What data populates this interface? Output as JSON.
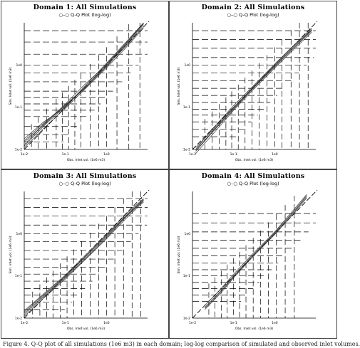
{
  "chart_data": [
    {
      "type": "line",
      "title": "Domain 1:  All Simulations",
      "legend": "Q-Q Plot (log-log)",
      "ylabel": "Sim. Inlet vol. (1e6 m3)",
      "xlabel": "Obs. Inlet vol. (1e6 m3)",
      "scale": "log-log",
      "xlim": [
        0.01,
        10
      ],
      "ylim": [
        0.01,
        10
      ],
      "x_ticks": [
        "1e-2",
        "1e-1",
        "1e0"
      ],
      "y_ticks": [
        "1e-2",
        "1e-1",
        "1e0"
      ],
      "quantile_levels": [
        0.015,
        0.022,
        0.035,
        0.06,
        0.085,
        0.12,
        0.17,
        0.24,
        0.4,
        0.65,
        1.0,
        1.8,
        3.5,
        6.5
      ],
      "series": [
        {
          "x": [
            0.01,
            0.03,
            0.1,
            0.3,
            1,
            3,
            8
          ],
          "y": [
            0.013,
            0.04,
            0.11,
            0.28,
            0.9,
            3.0,
            9.0
          ]
        },
        {
          "x": [
            0.01,
            0.03,
            0.1,
            0.3,
            1,
            3,
            8
          ],
          "y": [
            0.018,
            0.045,
            0.1,
            0.32,
            1.1,
            3.5,
            10.0
          ]
        },
        {
          "x": [
            0.01,
            0.03,
            0.1,
            0.3,
            1,
            3,
            8
          ],
          "y": [
            0.011,
            0.032,
            0.095,
            0.27,
            0.85,
            2.6,
            7.5
          ]
        },
        {
          "x": [
            0.01,
            0.03,
            0.1,
            0.3,
            1,
            3,
            8
          ],
          "y": [
            0.015,
            0.038,
            0.12,
            0.35,
            1.0,
            3.2,
            9.5
          ]
        },
        {
          "x": [
            0.01,
            0.03,
            0.1,
            0.3,
            1,
            3,
            8
          ],
          "y": [
            0.012,
            0.036,
            0.105,
            0.3,
            0.95,
            2.8,
            8.0
          ]
        },
        {
          "x": [
            0.01,
            0.03,
            0.1,
            0.3,
            1,
            3,
            8
          ],
          "y": [
            0.016,
            0.042,
            0.115,
            0.29,
            1.05,
            3.3,
            9.8
          ]
        }
      ]
    },
    {
      "type": "line",
      "title": "Domain 2:  All Simulations",
      "legend": "Q-Q Plot (log-log)",
      "ylabel": "Sim. Inlet vol. (1e6 m3)",
      "xlabel": "Obs. Inlet vol. (1e6 m3)",
      "scale": "log-log",
      "xlim": [
        0.01,
        10
      ],
      "ylim": [
        0.01,
        10
      ],
      "x_ticks": [
        "1e-2",
        "1e-1",
        "1e0"
      ],
      "y_ticks": [
        "1e-2",
        "1e-1",
        "1e0"
      ],
      "quantile_levels": [
        0.02,
        0.03,
        0.045,
        0.065,
        0.09,
        0.13,
        0.19,
        0.28,
        0.42,
        0.65,
        1.0,
        1.5,
        2.5,
        4.0,
        6.5
      ],
      "series": [
        {
          "x": [
            0.012,
            0.03,
            0.1,
            0.3,
            1,
            3,
            8
          ],
          "y": [
            0.009,
            0.025,
            0.09,
            0.28,
            0.9,
            2.6,
            6.5
          ]
        },
        {
          "x": [
            0.012,
            0.03,
            0.1,
            0.3,
            1,
            3,
            8
          ],
          "y": [
            0.011,
            0.028,
            0.1,
            0.3,
            1.0,
            2.9,
            7.0
          ]
        },
        {
          "x": [
            0.012,
            0.03,
            0.1,
            0.3,
            1,
            3,
            8
          ],
          "y": [
            0.008,
            0.022,
            0.085,
            0.26,
            0.85,
            2.4,
            6.0
          ]
        },
        {
          "x": [
            0.012,
            0.03,
            0.1,
            0.3,
            1,
            3,
            8
          ],
          "y": [
            0.01,
            0.03,
            0.11,
            0.32,
            1.05,
            3.0,
            7.5
          ]
        },
        {
          "x": [
            0.012,
            0.03,
            0.1,
            0.3,
            1,
            3,
            8
          ],
          "y": [
            0.0095,
            0.026,
            0.095,
            0.29,
            0.95,
            2.7,
            6.8
          ]
        }
      ]
    },
    {
      "type": "line",
      "title": "Domain 3:  All Simulations",
      "legend": "Q-Q Plot (log-log)",
      "ylabel": "Sim. Inlet vol. (1e6 m3)",
      "xlabel": "Obs. Inlet vol. (1e6 m3)",
      "scale": "log-log",
      "xlim": [
        0.01,
        10
      ],
      "ylim": [
        0.01,
        10
      ],
      "x_ticks": [
        "1e-2",
        "1e-1",
        "1e0"
      ],
      "y_ticks": [
        "1e-2",
        "1e-1",
        "1e0"
      ],
      "quantile_levels": [
        0.016,
        0.024,
        0.035,
        0.05,
        0.075,
        0.11,
        0.16,
        0.25,
        0.4,
        0.65,
        1.0,
        1.6,
        2.6,
        4.2,
        6.8
      ],
      "series": [
        {
          "x": [
            0.01,
            0.03,
            0.1,
            0.3,
            1,
            3,
            8
          ],
          "y": [
            0.012,
            0.032,
            0.09,
            0.25,
            0.8,
            2.5,
            6.0
          ]
        },
        {
          "x": [
            0.01,
            0.03,
            0.1,
            0.3,
            1,
            3,
            8
          ],
          "y": [
            0.014,
            0.036,
            0.1,
            0.28,
            0.9,
            2.7,
            6.5
          ]
        },
        {
          "x": [
            0.01,
            0.03,
            0.1,
            0.3,
            1,
            3,
            8
          ],
          "y": [
            0.011,
            0.03,
            0.085,
            0.24,
            0.75,
            2.3,
            5.6
          ]
        },
        {
          "x": [
            0.01,
            0.03,
            0.1,
            0.3,
            1,
            3,
            8
          ],
          "y": [
            0.013,
            0.034,
            0.095,
            0.27,
            0.85,
            2.6,
            6.2
          ]
        },
        {
          "x": [
            0.01,
            0.03,
            0.1,
            0.3,
            1,
            3,
            8
          ],
          "y": [
            0.015,
            0.038,
            0.105,
            0.3,
            0.95,
            2.9,
            6.8
          ]
        }
      ]
    },
    {
      "type": "line",
      "title": "Domain 4:  All Simulations",
      "legend": "Q-Q Plot (log-log)",
      "ylabel": "Sim. Inlet vol. (1e6 m3)",
      "xlabel": "Obs. Inlet vol. (1e6 m3)",
      "scale": "log-log",
      "xlim": [
        0.01,
        10
      ],
      "ylim": [
        0.01,
        10
      ],
      "x_ticks": [
        "1e-2",
        "1e-1",
        "1e0"
      ],
      "y_ticks": [
        "1e-2",
        "1e-1",
        "1e0"
      ],
      "quantile_levels": [
        0.025,
        0.035,
        0.05,
        0.07,
        0.1,
        0.14,
        0.2,
        0.3,
        0.45,
        0.7,
        1.1,
        1.8,
        3.0
      ],
      "series": [
        {
          "x": [
            0.02,
            0.05,
            0.1,
            0.3,
            1,
            3,
            6
          ],
          "y": [
            0.018,
            0.045,
            0.1,
            0.32,
            1.05,
            3.5,
            8.0
          ]
        },
        {
          "x": [
            0.02,
            0.05,
            0.1,
            0.3,
            1,
            3,
            6
          ],
          "y": [
            0.016,
            0.04,
            0.09,
            0.29,
            0.95,
            3.1,
            7.0
          ]
        },
        {
          "x": [
            0.02,
            0.05,
            0.1,
            0.3,
            1,
            3,
            6
          ],
          "y": [
            0.02,
            0.05,
            0.11,
            0.34,
            1.1,
            3.8,
            8.5
          ]
        },
        {
          "x": [
            0.02,
            0.05,
            0.1,
            0.3,
            1,
            3,
            6
          ],
          "y": [
            0.017,
            0.043,
            0.095,
            0.3,
            1.0,
            3.3,
            7.5
          ]
        }
      ]
    }
  ],
  "caption": "Figure 4. Q-Q plot of all simulations (1e6 m3) in each domain; log-log comparison of simulated and observed inlet volumes."
}
